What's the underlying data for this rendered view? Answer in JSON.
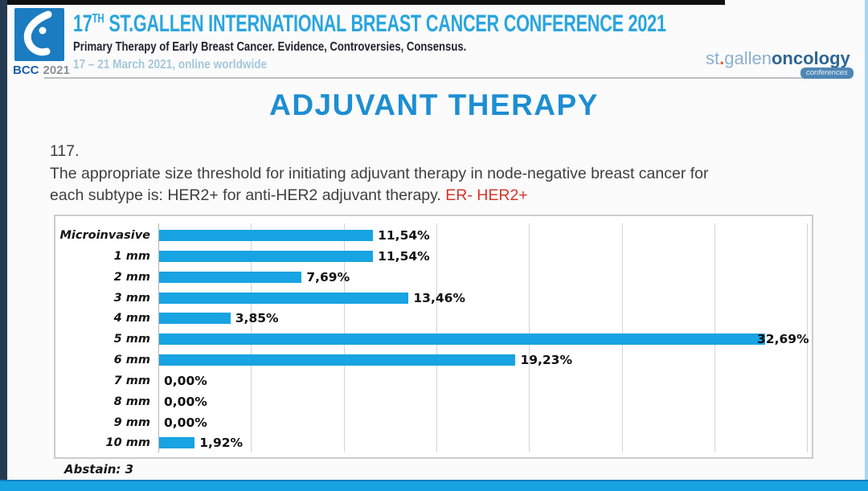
{
  "header": {
    "logo_bcc": "BCC",
    "logo_year": "2021",
    "title_num": "17",
    "title_sup": "TH",
    "title_rest": " ST.GALLEN INTERNATIONAL BREAST CANCER CONFERENCE 2021",
    "subtitle": "Primary Therapy of Early Breast Cancer. Evidence, Controversies, Consensus.",
    "date_line": "17 – 21 March 2021, online worldwide",
    "brand_st": "st",
    "brand_dot": ".",
    "brand_gallen": "gallen",
    "brand_oncology": "oncology",
    "brand_badge": "conferences"
  },
  "main": {
    "title": "ADJUVANT THERAPY",
    "question_number": "117.",
    "question_line1": "The appropriate size threshold for initiating adjuvant therapy in node-negative breast cancer for",
    "question_line2_prefix": "each subtype is: HER2+ for anti-HER2 adjuvant therapy. ",
    "question_highlight": "ER- HER2+",
    "abstain_note": "Abstain: 3"
  },
  "chart_data": {
    "type": "bar",
    "orientation": "horizontal",
    "title": "",
    "categories": [
      "Microinvasive",
      "1 mm",
      "2 mm",
      "3 mm",
      "4 mm",
      "5 mm",
      "6 mm",
      "7 mm",
      "8 mm",
      "9 mm",
      "10 mm"
    ],
    "values": [
      11.54,
      11.54,
      7.69,
      13.46,
      3.85,
      32.69,
      19.23,
      0.0,
      0.0,
      0.0,
      1.92
    ],
    "value_labels": [
      "11,54%",
      "11,54%",
      "7,69%",
      "13,46%",
      "3,85%",
      "32,69%",
      "19,23%",
      "0,00%",
      "0,00%",
      "0,00%",
      "1,92%"
    ],
    "xlim": [
      0,
      35.4
    ],
    "gridline_step": 5,
    "grid": true,
    "legend": "none",
    "bar_color": "#18a3e2",
    "abstain": 3
  },
  "colors": {
    "accent_blue": "#1d8ed2",
    "header_blue": "#2aa5de",
    "bar_blue": "#18a3e2",
    "highlight_red": "#d5352b",
    "bottom_bar": "#17a2e2"
  }
}
